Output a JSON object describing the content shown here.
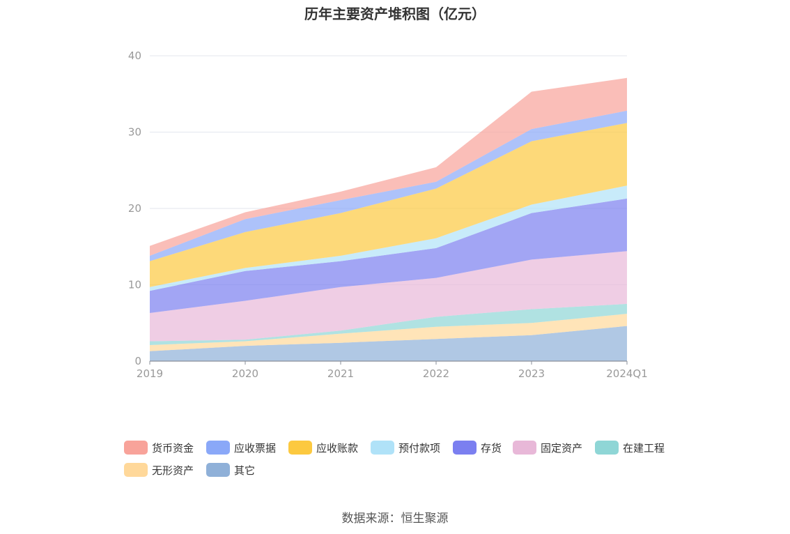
{
  "chart_data": {
    "type": "area",
    "stacked": true,
    "title": "历年主要资产堆积图（亿元）",
    "categories": [
      "2019",
      "2020",
      "2021",
      "2022",
      "2023",
      "2024Q1"
    ],
    "ylim": [
      0,
      40
    ],
    "yticks": [
      0,
      10,
      20,
      30,
      40
    ],
    "grid": true,
    "legend_position": "bottom",
    "series": [
      {
        "name": "其它",
        "color": "#8fb0d8",
        "values": [
          1.3,
          2.0,
          2.4,
          2.9,
          3.4,
          4.6
        ]
      },
      {
        "name": "无形资产",
        "color": "#ffd89a",
        "values": [
          0.8,
          0.6,
          1.2,
          1.6,
          1.6,
          1.6
        ]
      },
      {
        "name": "在建工程",
        "color": "#8fd6d6",
        "values": [
          0.5,
          0.2,
          0.4,
          1.3,
          1.8,
          1.3
        ]
      },
      {
        "name": "固定资产",
        "color": "#e8b8d8",
        "values": [
          3.7,
          5.1,
          5.7,
          5.1,
          6.5,
          6.9
        ]
      },
      {
        "name": "存货",
        "color": "#7b7ff0",
        "values": [
          2.9,
          3.9,
          3.4,
          3.9,
          6.1,
          6.9
        ]
      },
      {
        "name": "预付款项",
        "color": "#b0e2f8",
        "values": [
          0.5,
          0.4,
          0.7,
          1.3,
          1.1,
          1.7
        ]
      },
      {
        "name": "应收账款",
        "color": "#fcc940",
        "values": [
          3.4,
          4.7,
          5.6,
          6.5,
          8.3,
          8.2
        ]
      },
      {
        "name": "应收票据",
        "color": "#8aa8f8",
        "values": [
          0.7,
          1.7,
          1.7,
          0.9,
          1.6,
          1.6
        ]
      },
      {
        "name": "货币资金",
        "color": "#f8a39a",
        "values": [
          1.3,
          0.9,
          1.1,
          1.9,
          4.9,
          4.3
        ]
      }
    ],
    "legend_order": [
      "货币资金",
      "应收票据",
      "应收账款",
      "预付款项",
      "存货",
      "固定资产",
      "在建工程",
      "无形资产",
      "其它"
    ]
  },
  "source": "数据来源：恒生聚源"
}
